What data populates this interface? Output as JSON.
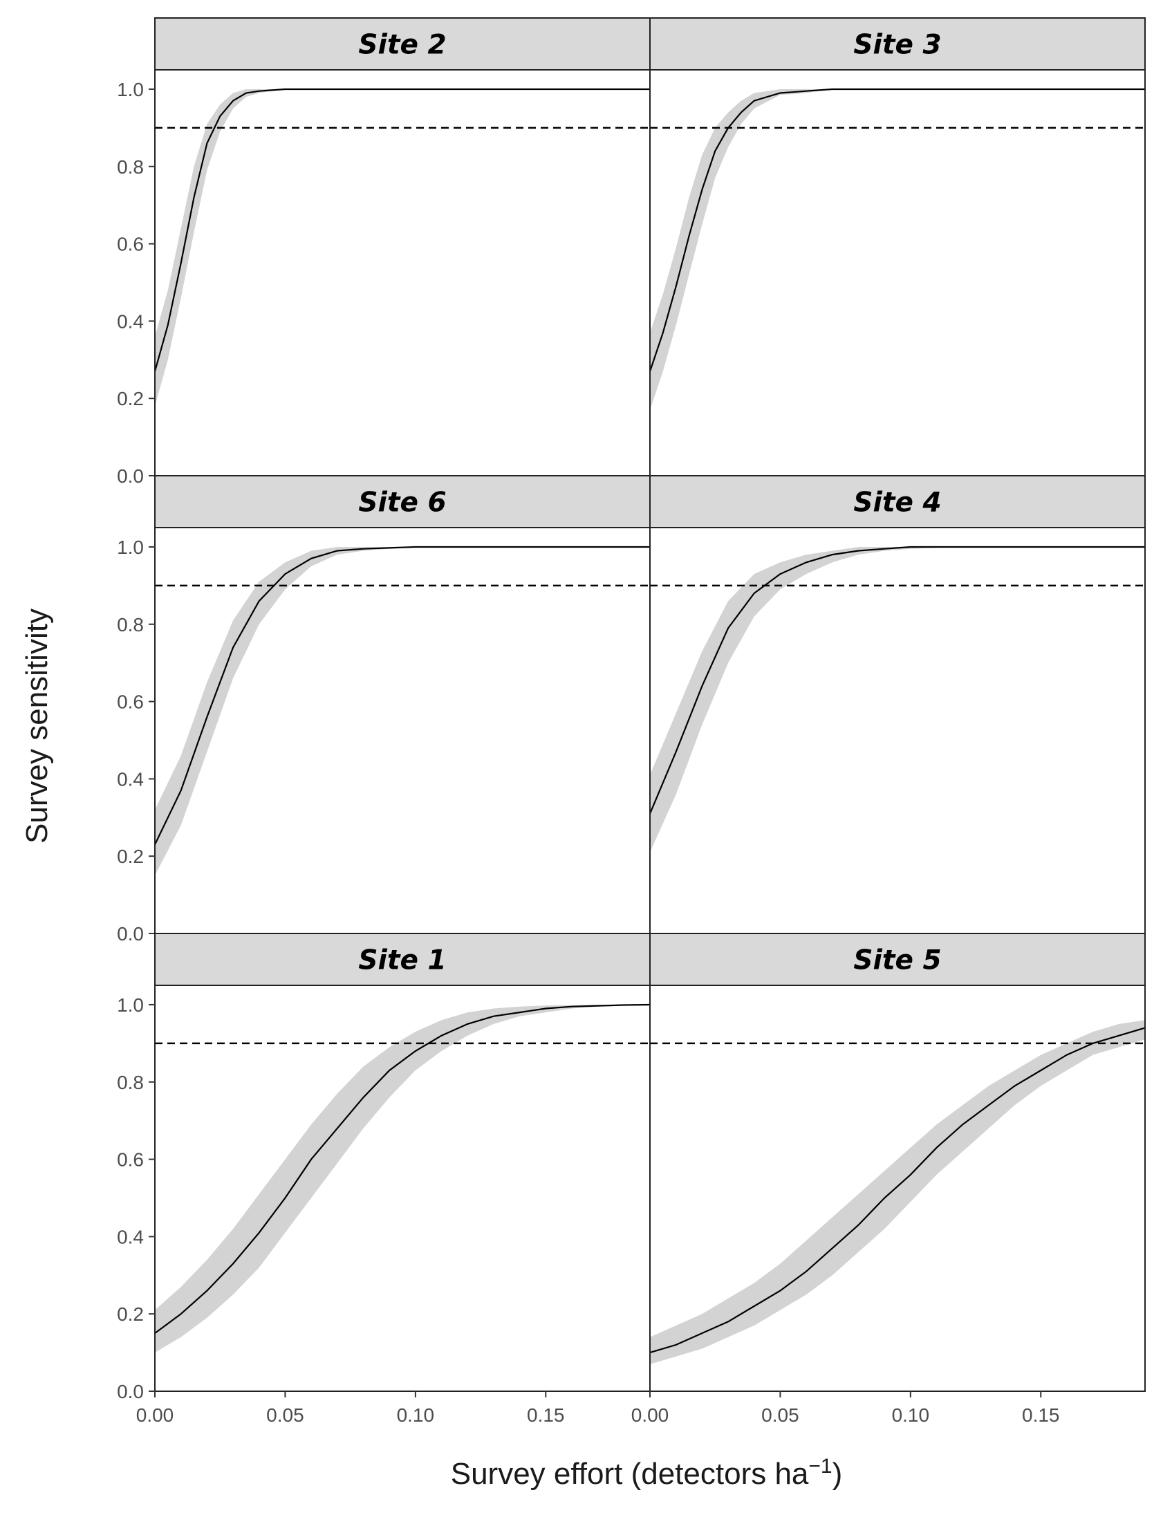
{
  "chart_data": {
    "type": "line",
    "layout": "faceted 3x2 small multiples, shared axes",
    "xlabel": {
      "main": "Survey effort (detectors ha",
      "superscript": "−1",
      "close": ")"
    },
    "ylabel": "Survey sensitivity",
    "xlim": [
      0,
      0.19
    ],
    "ylim": [
      0,
      1.05
    ],
    "x_ticks": [
      0,
      0.05,
      0.1,
      0.15
    ],
    "x_tick_labels": [
      "0.00",
      "0.05",
      "0.10",
      "0.15"
    ],
    "y_ticks": [
      0,
      0.2,
      0.4,
      0.6,
      0.8,
      1.0
    ],
    "y_tick_labels": [
      "0.0",
      "0.2",
      "0.4",
      "0.6",
      "0.8",
      "1.0"
    ],
    "reference_line": {
      "y": 0.9,
      "style": "dashed"
    },
    "colors": {
      "line": "#000000",
      "band": "#d3d3d3",
      "strip": "#d9d9d9",
      "tick_text": "#4d4d4d"
    },
    "grid": false,
    "panels": [
      {
        "label": "Site 2",
        "x": [
          0,
          0.005,
          0.01,
          0.015,
          0.02,
          0.025,
          0.03,
          0.035,
          0.04,
          0.05,
          0.06,
          0.08,
          0.1,
          0.19
        ],
        "y": [
          0.27,
          0.39,
          0.55,
          0.72,
          0.86,
          0.93,
          0.97,
          0.99,
          0.995,
          1.0,
          1.0,
          1.0,
          1.0,
          1.0
        ],
        "lower": [
          0.18,
          0.3,
          0.46,
          0.63,
          0.79,
          0.89,
          0.95,
          0.98,
          0.99,
          1.0,
          1.0,
          1.0,
          1.0,
          1.0
        ],
        "upper": [
          0.36,
          0.48,
          0.64,
          0.8,
          0.91,
          0.96,
          0.99,
          1.0,
          1.0,
          1.0,
          1.0,
          1.0,
          1.0,
          1.0
        ]
      },
      {
        "label": "Site 3",
        "x": [
          0,
          0.005,
          0.01,
          0.015,
          0.02,
          0.025,
          0.03,
          0.035,
          0.04,
          0.05,
          0.06,
          0.07,
          0.08,
          0.1,
          0.19
        ],
        "y": [
          0.27,
          0.37,
          0.49,
          0.62,
          0.74,
          0.84,
          0.9,
          0.94,
          0.97,
          0.99,
          0.995,
          1.0,
          1.0,
          1.0,
          1.0
        ],
        "lower": [
          0.17,
          0.27,
          0.39,
          0.52,
          0.65,
          0.77,
          0.85,
          0.91,
          0.95,
          0.985,
          0.99,
          1.0,
          1.0,
          1.0,
          1.0
        ],
        "upper": [
          0.37,
          0.47,
          0.59,
          0.72,
          0.83,
          0.9,
          0.94,
          0.97,
          0.99,
          1.0,
          1.0,
          1.0,
          1.0,
          1.0,
          1.0
        ]
      },
      {
        "label": "Site 6",
        "x": [
          0,
          0.01,
          0.02,
          0.03,
          0.04,
          0.05,
          0.06,
          0.07,
          0.08,
          0.1,
          0.12,
          0.19
        ],
        "y": [
          0.23,
          0.37,
          0.56,
          0.74,
          0.86,
          0.93,
          0.97,
          0.99,
          0.995,
          1.0,
          1.0,
          1.0
        ],
        "lower": [
          0.15,
          0.28,
          0.47,
          0.66,
          0.8,
          0.89,
          0.95,
          0.98,
          0.99,
          1.0,
          1.0,
          1.0
        ],
        "upper": [
          0.32,
          0.46,
          0.65,
          0.81,
          0.91,
          0.96,
          0.99,
          1.0,
          1.0,
          1.0,
          1.0,
          1.0
        ]
      },
      {
        "label": "Site 4",
        "x": [
          0,
          0.01,
          0.02,
          0.03,
          0.04,
          0.05,
          0.06,
          0.07,
          0.08,
          0.09,
          0.1,
          0.12,
          0.19
        ],
        "y": [
          0.31,
          0.47,
          0.64,
          0.79,
          0.88,
          0.93,
          0.96,
          0.98,
          0.99,
          0.995,
          1.0,
          1.0,
          1.0
        ],
        "lower": [
          0.21,
          0.36,
          0.54,
          0.7,
          0.82,
          0.89,
          0.93,
          0.96,
          0.98,
          0.99,
          0.995,
          1.0,
          1.0
        ],
        "upper": [
          0.41,
          0.57,
          0.73,
          0.86,
          0.93,
          0.96,
          0.98,
          0.99,
          1.0,
          1.0,
          1.0,
          1.0,
          1.0
        ]
      },
      {
        "label": "Site 1",
        "x": [
          0,
          0.01,
          0.02,
          0.03,
          0.04,
          0.05,
          0.06,
          0.07,
          0.08,
          0.09,
          0.1,
          0.11,
          0.12,
          0.13,
          0.14,
          0.15,
          0.16,
          0.17,
          0.18,
          0.19
        ],
        "y": [
          0.15,
          0.2,
          0.26,
          0.33,
          0.41,
          0.5,
          0.6,
          0.68,
          0.76,
          0.83,
          0.88,
          0.92,
          0.95,
          0.97,
          0.98,
          0.99,
          0.995,
          0.997,
          0.999,
          1.0
        ],
        "lower": [
          0.1,
          0.14,
          0.19,
          0.25,
          0.32,
          0.41,
          0.5,
          0.59,
          0.68,
          0.76,
          0.83,
          0.88,
          0.92,
          0.95,
          0.97,
          0.98,
          0.99,
          0.995,
          0.998,
          0.999
        ],
        "upper": [
          0.21,
          0.27,
          0.34,
          0.42,
          0.51,
          0.6,
          0.69,
          0.77,
          0.84,
          0.89,
          0.93,
          0.96,
          0.98,
          0.99,
          0.995,
          0.998,
          0.999,
          1.0,
          1.0,
          1.0
        ]
      },
      {
        "label": "Site 5",
        "x": [
          0,
          0.01,
          0.02,
          0.03,
          0.04,
          0.05,
          0.06,
          0.07,
          0.08,
          0.09,
          0.1,
          0.11,
          0.12,
          0.13,
          0.14,
          0.15,
          0.16,
          0.17,
          0.18,
          0.19
        ],
        "y": [
          0.1,
          0.12,
          0.15,
          0.18,
          0.22,
          0.26,
          0.31,
          0.37,
          0.43,
          0.5,
          0.56,
          0.63,
          0.69,
          0.74,
          0.79,
          0.83,
          0.87,
          0.9,
          0.92,
          0.94
        ],
        "lower": [
          0.07,
          0.09,
          0.11,
          0.14,
          0.17,
          0.21,
          0.25,
          0.3,
          0.36,
          0.42,
          0.49,
          0.56,
          0.62,
          0.68,
          0.74,
          0.79,
          0.83,
          0.87,
          0.89,
          0.91
        ],
        "upper": [
          0.14,
          0.17,
          0.2,
          0.24,
          0.28,
          0.33,
          0.39,
          0.45,
          0.51,
          0.57,
          0.63,
          0.69,
          0.74,
          0.79,
          0.83,
          0.87,
          0.9,
          0.93,
          0.95,
          0.96
        ]
      }
    ]
  }
}
